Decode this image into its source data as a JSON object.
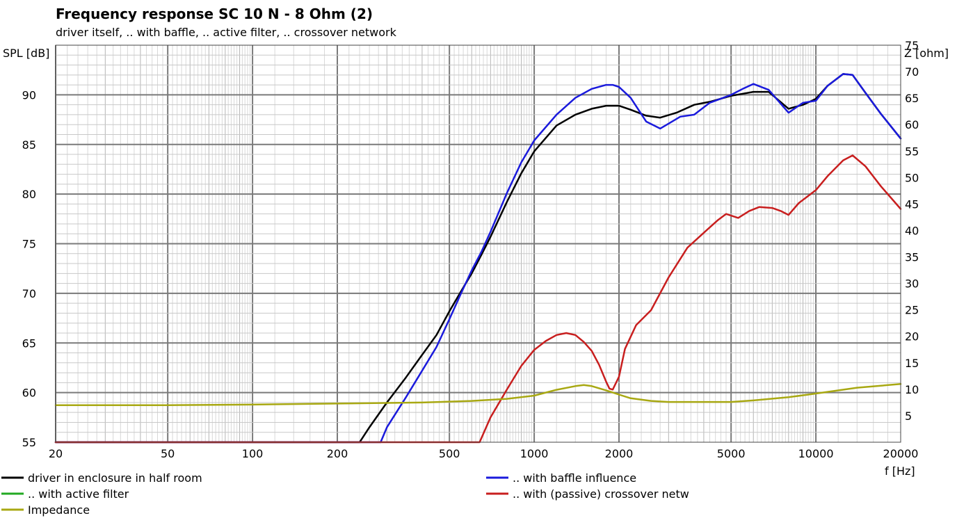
{
  "chart_data": {
    "type": "line",
    "title": "Frequency response SC 10 N - 8 Ohm (2)",
    "subtitle": "driver itself, .. with baffle, .. active filter, .. crossover network",
    "xlabel": "f [Hz]",
    "ylabel": "SPL [dB]",
    "y2label": "Z [ohm]",
    "xscale": "log",
    "xlim": [
      20,
      20000
    ],
    "ylim": [
      55,
      95
    ],
    "y2lim": [
      0,
      75
    ],
    "x_tick_labels": [
      "20",
      "50",
      "100",
      "200",
      "500",
      "1000",
      "2000",
      "5000",
      "10000",
      "20000"
    ],
    "y_tick_labels": [
      "55",
      "60",
      "65",
      "70",
      "75",
      "80",
      "85",
      "90"
    ],
    "y2_tick_labels": [
      "5",
      "10",
      "15",
      "20",
      "25",
      "30",
      "35",
      "40",
      "45",
      "50",
      "55",
      "60",
      "65",
      "70",
      "75"
    ],
    "grid": true,
    "legend_position": "bottom",
    "series": [
      {
        "name": "driver in enclosure in half room",
        "color": "#000000",
        "axis": "left",
        "x": [
          20,
          240,
          260,
          300,
          350,
          400,
          450,
          500,
          550,
          600,
          650,
          700,
          800,
          900,
          1000,
          1200,
          1400,
          1600,
          1800,
          2000,
          2200,
          2500,
          2800,
          3200,
          3700,
          4200,
          5000,
          6000,
          6800,
          8000,
          9000,
          10000,
          11000,
          12500,
          13500,
          15000,
          17000,
          20000
        ],
        "y": [
          55,
          55,
          56.5,
          59,
          61.5,
          63.8,
          65.8,
          68.2,
          70.2,
          72,
          73.9,
          75.7,
          79.2,
          82.1,
          84.3,
          86.9,
          88,
          88.6,
          88.9,
          88.9,
          88.5,
          87.9,
          87.7,
          88.2,
          89,
          89.3,
          89.9,
          90.3,
          90.3,
          88.6,
          89.0,
          89.6,
          90.9,
          92.1,
          92.0,
          90.2,
          88.1,
          85.6
        ]
      },
      {
        "name": ".. with baffle influence",
        "color": "#1a1adc",
        "axis": "left",
        "x": [
          20,
          285,
          300,
          350,
          400,
          450,
          500,
          550,
          600,
          650,
          700,
          800,
          900,
          1000,
          1200,
          1400,
          1600,
          1800,
          1900,
          2000,
          2200,
          2500,
          2800,
          3000,
          3300,
          3700,
          4200,
          5000,
          5500,
          6000,
          6800,
          8000,
          9000,
          10000,
          11000,
          12500,
          13500,
          15000,
          17000,
          20000
        ],
        "y": [
          55,
          55,
          56.5,
          59.5,
          62.2,
          64.6,
          67.4,
          70,
          72.3,
          74.2,
          76.2,
          80.1,
          83.2,
          85.4,
          88,
          89.7,
          90.6,
          91,
          91,
          90.8,
          89.7,
          87.3,
          86.6,
          87.1,
          87.8,
          88,
          89.2,
          90,
          90.6,
          91.1,
          90.5,
          88.2,
          89.2,
          89.4,
          90.9,
          92.1,
          92.0,
          90.2,
          88.1,
          85.6
        ]
      },
      {
        "name": ".. with active filter",
        "color": "#22aa22",
        "axis": "left",
        "x": [],
        "y": []
      },
      {
        "name": ".. with (passive) crossover netw",
        "color": "#c81e1e",
        "axis": "left",
        "x": [
          20,
          640,
          700,
          800,
          900,
          1000,
          1100,
          1200,
          1300,
          1400,
          1500,
          1600,
          1700,
          1800,
          1850,
          1900,
          2000,
          2100,
          2300,
          2600,
          3000,
          3500,
          4000,
          4500,
          4800,
          5300,
          5800,
          6300,
          7000,
          7500,
          8000,
          8700,
          10000,
          11000,
          12500,
          13500,
          15000,
          17000,
          20000
        ],
        "y": [
          55,
          55,
          57.5,
          60.3,
          62.7,
          64.3,
          65.2,
          65.8,
          66,
          65.8,
          65.1,
          64.2,
          62.8,
          61.1,
          60.4,
          60.3,
          61.6,
          64.4,
          66.8,
          68.3,
          71.6,
          74.6,
          76.1,
          77.4,
          78,
          77.6,
          78.3,
          78.7,
          78.6,
          78.3,
          77.9,
          79.1,
          80.4,
          81.8,
          83.4,
          83.9,
          82.8,
          80.8,
          78.5
        ]
      },
      {
        "name": "Impedance",
        "color": "#a8a812",
        "axis": "right",
        "x": [
          20,
          50,
          100,
          200,
          400,
          600,
          800,
          1000,
          1200,
          1400,
          1500,
          1600,
          1800,
          2000,
          2200,
          2600,
          3000,
          4000,
          5000,
          6000,
          8000,
          10000,
          14000,
          20000
        ],
        "y": [
          7,
          7,
          7.1,
          7.3,
          7.5,
          7.8,
          8.2,
          8.8,
          9.9,
          10.6,
          10.8,
          10.6,
          9.8,
          9.0,
          8.3,
          7.8,
          7.6,
          7.6,
          7.6,
          7.9,
          8.5,
          9.2,
          10.3,
          11.0
        ]
      }
    ]
  }
}
